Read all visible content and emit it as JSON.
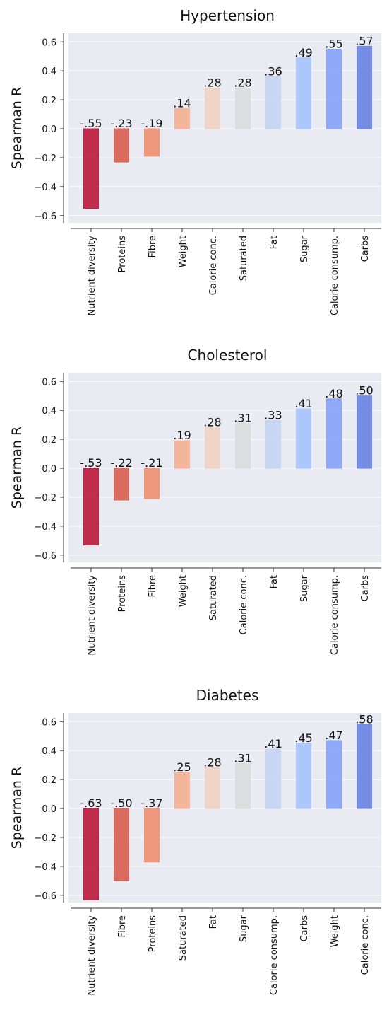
{
  "chart_data": [
    {
      "type": "bar",
      "title": "Hypertension",
      "y_label": "Spearman R",
      "categories": [
        "Nutrient diversity",
        "Proteins",
        "Fibre",
        "Weight",
        "Calorie conc.",
        "Saturated",
        "Fat",
        "Sugar",
        "Calorie consump.",
        "Carbs"
      ],
      "values": [
        -0.55,
        -0.23,
        -0.19,
        0.14,
        0.28,
        0.28,
        0.36,
        0.49,
        0.55,
        0.57
      ],
      "value_labels": [
        "-.55",
        "-.23",
        "-.19",
        ".14",
        ".28",
        ".28",
        ".36",
        ".49",
        ".55",
        ".57"
      ],
      "colors": [
        "#bf2343",
        "#d86556",
        "#ee9477",
        "#f4b396",
        "#efd3c4",
        "#dcdddd",
        "#c5d6f2",
        "#a8c5fc",
        "#8aa7f8",
        "#6e87e3"
      ],
      "ylim": [
        -0.65,
        0.66
      ],
      "yticks": [
        {
          "value": -0.6,
          "label": "−0.6"
        },
        {
          "value": -0.4,
          "label": "−0.4"
        },
        {
          "value": -0.2,
          "label": "−0.2"
        },
        {
          "value": 0,
          "label": "0.0"
        },
        0.2,
        0.4,
        0.6
      ],
      "grid": true
    },
    {
      "type": "bar",
      "title": "Cholesterol",
      "y_label": "Spearman R",
      "categories": [
        "Nutrient diversity",
        "Proteins",
        "Fibre",
        "Weight",
        "Saturated",
        "Calorie conc.",
        "Fat",
        "Sugar",
        "Calorie consump.",
        "Carbs"
      ],
      "values": [
        -0.53,
        -0.22,
        -0.21,
        0.19,
        0.28,
        0.31,
        0.33,
        0.41,
        0.48,
        0.5
      ],
      "value_labels": [
        "-.53",
        "-.22",
        "-.21",
        ".19",
        ".28",
        ".31",
        ".33",
        ".41",
        ".48",
        ".50"
      ],
      "colors": [
        "#bf2343",
        "#d86556",
        "#ee9477",
        "#f4b396",
        "#efd3c4",
        "#dcdddd",
        "#c5d6f2",
        "#a8c5fc",
        "#8aa7f8",
        "#6e87e3"
      ],
      "ylim": [
        -0.65,
        0.66
      ],
      "yticks": [
        {
          "value": -0.6,
          "label": "−0.6"
        },
        {
          "value": -0.4,
          "label": "−0.4"
        },
        {
          "value": -0.2,
          "label": "−0.2"
        },
        {
          "value": 0,
          "label": "0.0"
        },
        0.2,
        0.4,
        0.6
      ],
      "grid": true
    },
    {
      "type": "bar",
      "title": "Diabetes",
      "y_label": "Spearman R",
      "categories": [
        "Nutrient diversity",
        "Fibre",
        "Proteins",
        "Saturated",
        "Fat",
        "Sugar",
        "Calorie consump.",
        "Carbs",
        "Weight",
        "Calorie conc."
      ],
      "values": [
        -0.63,
        -0.5,
        -0.37,
        0.25,
        0.28,
        0.31,
        0.41,
        0.45,
        0.47,
        0.58
      ],
      "value_labels": [
        "-.63",
        "-.50",
        "-.37",
        ".25",
        ".28",
        ".31",
        ".41",
        ".45",
        ".47",
        ".58"
      ],
      "colors": [
        "#bf2343",
        "#d86556",
        "#ee9477",
        "#f4b396",
        "#efd3c4",
        "#dcdddd",
        "#c5d6f2",
        "#a8c5fc",
        "#8aa7f8",
        "#6e87e3"
      ],
      "ylim": [
        -0.65,
        0.66
      ],
      "yticks": [
        {
          "value": -0.6,
          "label": "−0.6"
        },
        {
          "value": -0.4,
          "label": "−0.4"
        },
        {
          "value": -0.2,
          "label": "−0.2"
        },
        {
          "value": 0,
          "label": "0.0"
        },
        0.2,
        0.4,
        0.6
      ],
      "grid": true
    }
  ]
}
